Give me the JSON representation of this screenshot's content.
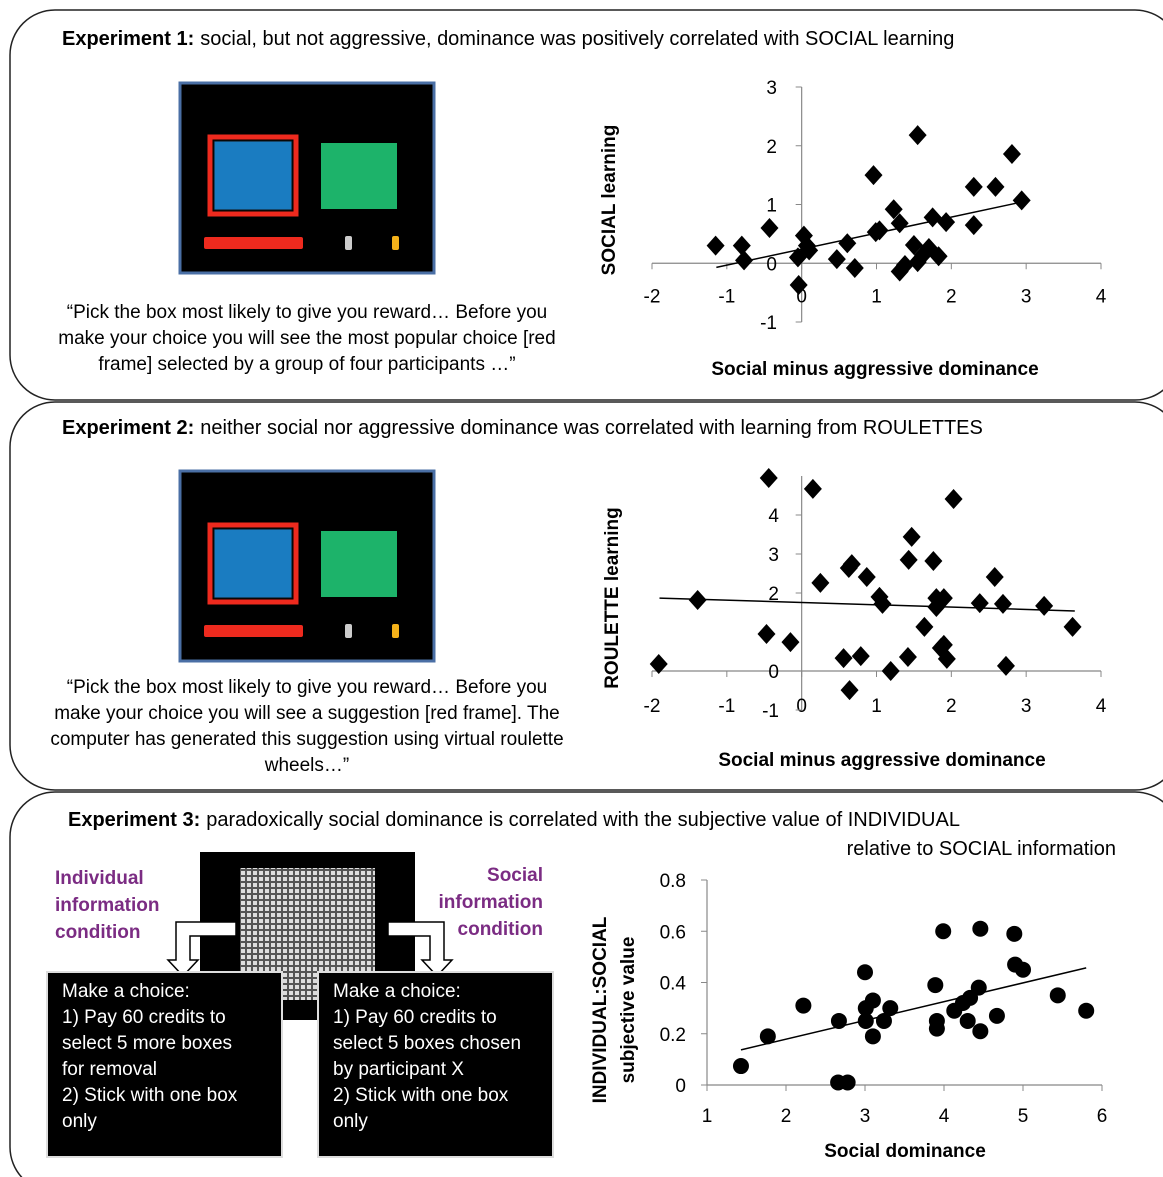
{
  "panels": [
    {
      "heading": {
        "label": "Experiment 1:",
        "text": [
          "social, but not aggressive, dominance was positively correlated with SOCIAL learning"
        ]
      },
      "quote": [
        "“Pick the box most likely to give you reward… Before you",
        "make your choice you will see the most popular choice [red",
        "frame] selected by a group of four participants …”"
      ]
    },
    {
      "heading": {
        "label": "Experiment 2:",
        "text": [
          "neither social nor aggressive dominance was correlated with learning from ROULETTES"
        ]
      },
      "quote": [
        "“Pick the box most likely to give you reward… Before you",
        "make your choice you will see a suggestion [red frame]. The",
        "computer has generated this suggestion using virtual roulette",
        "wheels…”"
      ]
    },
    {
      "heading": {
        "label": "Experiment 3:",
        "text": [
          "paradoxically social dominance is correlated with the subjective value of INDIVIDUAL",
          "relative to SOCIAL information"
        ]
      },
      "conditions": [
        {
          "label": [
            "Individual",
            "information",
            "condition"
          ],
          "box": [
            "Make a choice:",
            "1) Pay 60 credits to",
            "select 5 more boxes",
            "for removal",
            "2) Stick with one box",
            "only"
          ]
        },
        {
          "label": [
            "Social",
            "information",
            "condition"
          ],
          "box": [
            "Make a choice:",
            "1) Pay 60 credits to",
            "select 5 boxes chosen",
            "by participant X",
            "2) Stick with one box",
            "only"
          ]
        }
      ]
    }
  ],
  "chart_data": [
    {
      "type": "scatter",
      "xlabel": "Social minus aggressive dominance",
      "ylabel": "SOCIAL learning",
      "marker": "diamond",
      "color": "#000000",
      "xlim": [
        -2,
        4
      ],
      "ylim": [
        -1,
        3
      ],
      "xticks": [
        -2,
        -1,
        0,
        1,
        2,
        3,
        4
      ],
      "yticks": [
        -1,
        0,
        1,
        2,
        3
      ],
      "x": [
        -1.15,
        -0.8,
        -0.77,
        -0.43,
        -0.05,
        -0.04,
        0.03,
        0.07,
        0.1,
        0.47,
        0.61,
        0.71,
        0.96,
        0.99,
        1.04,
        1.23,
        1.31,
        1.31,
        1.38,
        1.5,
        1.55,
        1.55,
        1.62,
        1.7,
        1.75,
        1.83,
        1.93,
        2.3,
        2.3,
        2.59,
        2.81,
        2.94
      ],
      "y": [
        0.3,
        0.3,
        0.05,
        0.6,
        0.1,
        -0.37,
        0.47,
        0.3,
        0.22,
        0.07,
        0.34,
        -0.08,
        1.5,
        0.53,
        0.56,
        0.92,
        0.68,
        -0.14,
        -0.03,
        0.31,
        2.18,
        0.02,
        0.14,
        0.26,
        0.78,
        0.12,
        0.7,
        0.65,
        1.3,
        1.3,
        1.86,
        1.07
      ],
      "trendline": {
        "x": [
          -1.14,
          2.86
        ],
        "y": [
          -0.07,
          1.02
        ]
      }
    },
    {
      "type": "scatter",
      "xlabel": "Social minus aggressive dominance",
      "ylabel": "ROULETTE learning",
      "marker": "diamond",
      "color": "#000000",
      "xlim": [
        -2,
        4
      ],
      "ylim": [
        -1,
        5
      ],
      "xticks": [
        -2,
        -1,
        0,
        1,
        2,
        3,
        4
      ],
      "yticks": [
        -1,
        0,
        2,
        3,
        4
      ],
      "x": [
        -1.91,
        -1.39,
        -0.47,
        -0.44,
        -0.15,
        0.15,
        0.25,
        0.56,
        0.63,
        0.67,
        0.64,
        0.79,
        0.87,
        1.04,
        1.08,
        1.19,
        1.42,
        1.43,
        1.47,
        1.64,
        1.76,
        1.8,
        1.8,
        1.86,
        1.9,
        1.94,
        1.9,
        2.03,
        2.38,
        2.58,
        2.69,
        2.73,
        3.24,
        3.62
      ],
      "y": [
        0.18,
        1.82,
        0.95,
        4.95,
        0.74,
        4.67,
        2.26,
        0.33,
        2.64,
        2.74,
        -0.49,
        0.38,
        2.41,
        1.9,
        1.72,
        0,
        0.36,
        2.85,
        3.44,
        1.13,
        2.82,
        1.87,
        1.64,
        0.59,
        1.87,
        0.31,
        0.67,
        4.41,
        1.74,
        2.41,
        1.72,
        0.13,
        1.67,
        1.13
      ],
      "trendline": {
        "x": [
          -1.9,
          3.65
        ],
        "y": [
          1.87,
          1.54
        ]
      }
    },
    {
      "type": "scatter",
      "xlabel": "Social dominance",
      "ylabel": [
        "INDIVIDUAL:SOCIAL",
        "subjective value"
      ],
      "marker": "circle",
      "color": "#000000",
      "xlim": [
        1,
        6
      ],
      "ylim": [
        0,
        0.8
      ],
      "xticks": [
        1,
        2,
        3,
        4,
        5,
        6
      ],
      "yticks": [
        0,
        0.2,
        0.4,
        0.6,
        0.8
      ],
      "x": [
        1.43,
        1.77,
        2.22,
        2.67,
        2.66,
        2.78,
        3.0,
        3.01,
        3.01,
        3.1,
        3.1,
        3.24,
        3.32,
        3.89,
        3.91,
        3.91,
        3.99,
        4.13,
        4.24,
        4.3,
        4.33,
        4.44,
        4.46,
        4.46,
        4.67,
        4.89,
        4.9,
        5.0,
        5.44,
        5.8
      ],
      "y": [
        0.074,
        0.19,
        0.31,
        0.25,
        0.01,
        0.01,
        0.44,
        0.3,
        0.25,
        0.33,
        0.19,
        0.25,
        0.3,
        0.39,
        0.25,
        0.22,
        0.6,
        0.29,
        0.32,
        0.25,
        0.34,
        0.38,
        0.21,
        0.61,
        0.27,
        0.59,
        0.47,
        0.45,
        0.35,
        0.29
      ],
      "trendline": {
        "x": [
          1.43,
          5.8
        ],
        "y": [
          0.137,
          0.457
        ]
      }
    }
  ]
}
